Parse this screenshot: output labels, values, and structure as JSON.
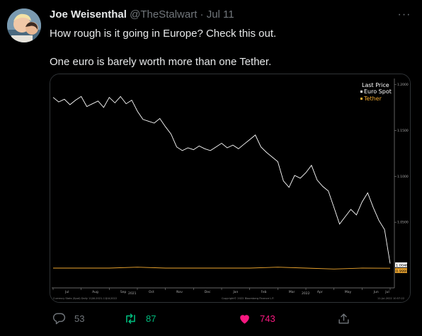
{
  "tweet": {
    "display_name": "Joe Weisenthal",
    "handle": "@TheStalwart",
    "separator": "·",
    "date": "Jul 11",
    "more_label": "···",
    "text_line1": "How rough is it going in Europe? Check this out.",
    "text_line2": "One euro is barely worth more than one Tether."
  },
  "actions": {
    "reply_count": "53",
    "retweet_count": "87",
    "like_count": "743",
    "reply_icon": "reply-icon",
    "retweet_icon": "retweet-icon",
    "like_icon": "heart-icon",
    "share_icon": "share-icon"
  },
  "colors": {
    "background": "#000000",
    "text": "#e7e9ea",
    "muted": "#71767b",
    "retweet_green": "#00ba7c",
    "like_pink": "#f91880",
    "euro_series": "#ffffff",
    "tether_series": "#f0a830"
  },
  "chart_data": {
    "type": "line",
    "legend_title": "Last Price",
    "legend_position": "top-right",
    "grid": false,
    "y_ticks": [
      "1.2000",
      "1.1500",
      "1.1000",
      "1.0500"
    ],
    "y_labels": [
      "1.0046",
      "0.9999"
    ],
    "ylim": [
      0.98,
      1.205
    ],
    "x_month_labels": [
      "Jul",
      "Aug",
      "Sep",
      "Oct",
      "Nov",
      "Dec",
      "Jan",
      "Feb",
      "Mar",
      "Apr",
      "May",
      "Jun",
      "Jul"
    ],
    "x_year_labels": [
      "2021",
      "2022"
    ],
    "footer_left": "Currency Stats (Spot)  Daily 11JUL2021-11JUL2022",
    "footer_center": "Copyright© 2022 Bloomberg Finance L.P.",
    "footer_right": "11-Jul-2022 10:57:22",
    "series": [
      {
        "name": "Euro Spot",
        "x": [
          0,
          0.2,
          0.4,
          0.6,
          0.8,
          1.0,
          1.2,
          1.4,
          1.6,
          1.8,
          2.0,
          2.2,
          2.4,
          2.6,
          2.8,
          3.0,
          3.2,
          3.4,
          3.6,
          3.8,
          4.0,
          4.2,
          4.4,
          4.6,
          4.8,
          5.0,
          5.2,
          5.4,
          5.6,
          5.8,
          6.0,
          6.2,
          6.4,
          6.6,
          6.8,
          7.0,
          7.2,
          7.4,
          7.6,
          7.8,
          8.0,
          8.2,
          8.4,
          8.6,
          8.8,
          9.0,
          9.2,
          9.4,
          9.6,
          9.8,
          10.0,
          10.2,
          10.4,
          10.6,
          10.8,
          11.0,
          11.2,
          11.4,
          11.6,
          11.8,
          12.0
        ],
        "values": [
          1.186,
          1.181,
          1.184,
          1.178,
          1.183,
          1.187,
          1.176,
          1.179,
          1.182,
          1.175,
          1.186,
          1.18,
          1.187,
          1.179,
          1.183,
          1.171,
          1.162,
          1.16,
          1.158,
          1.163,
          1.154,
          1.146,
          1.132,
          1.128,
          1.131,
          1.129,
          1.133,
          1.13,
          1.128,
          1.132,
          1.136,
          1.131,
          1.134,
          1.13,
          1.135,
          1.14,
          1.145,
          1.132,
          1.126,
          1.121,
          1.116,
          1.095,
          1.088,
          1.101,
          1.098,
          1.104,
          1.112,
          1.096,
          1.089,
          1.084,
          1.066,
          1.048,
          1.056,
          1.064,
          1.058,
          1.072,
          1.082,
          1.066,
          1.052,
          1.042,
          1.005
        ]
      },
      {
        "name": "Tether",
        "x": [
          0,
          1,
          2,
          3,
          4,
          5,
          6,
          7,
          8,
          9,
          10,
          11,
          12
        ],
        "values": [
          1.0,
          1.0,
          1.0,
          1.001,
          1.0,
          1.0,
          1.0,
          1.0,
          1.001,
          1.0,
          0.999,
          1.0,
          0.9999
        ]
      }
    ]
  }
}
